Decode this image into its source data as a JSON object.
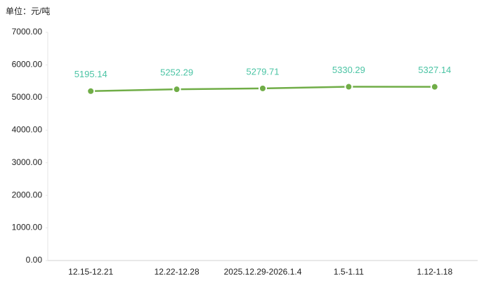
{
  "chart_data": {
    "type": "line",
    "y_label": "单位：元/吨",
    "categories": [
      "12.15-12.21",
      "12.22-12.28",
      "2025.12.29-2026.1.4",
      "1.5-1.11",
      "1.12-1.18"
    ],
    "series": [
      {
        "color": "#70ad47",
        "values": [
          5195.14,
          5252.29,
          5279.71,
          5330.29,
          5327.14
        ]
      }
    ],
    "ylim": [
      0,
      7000
    ],
    "yticks": [
      {
        "value": 0,
        "label": "0.00"
      },
      {
        "value": 1000,
        "label": "1000.00"
      },
      {
        "value": 2000,
        "label": "2000.00"
      },
      {
        "value": 3000,
        "label": "3000.00"
      },
      {
        "value": 4000,
        "label": "4000.00"
      },
      {
        "value": 5000,
        "label": "5000.00"
      },
      {
        "value": 6000,
        "label": "6000.00"
      },
      {
        "value": 7000,
        "label": "7000.00"
      }
    ]
  }
}
